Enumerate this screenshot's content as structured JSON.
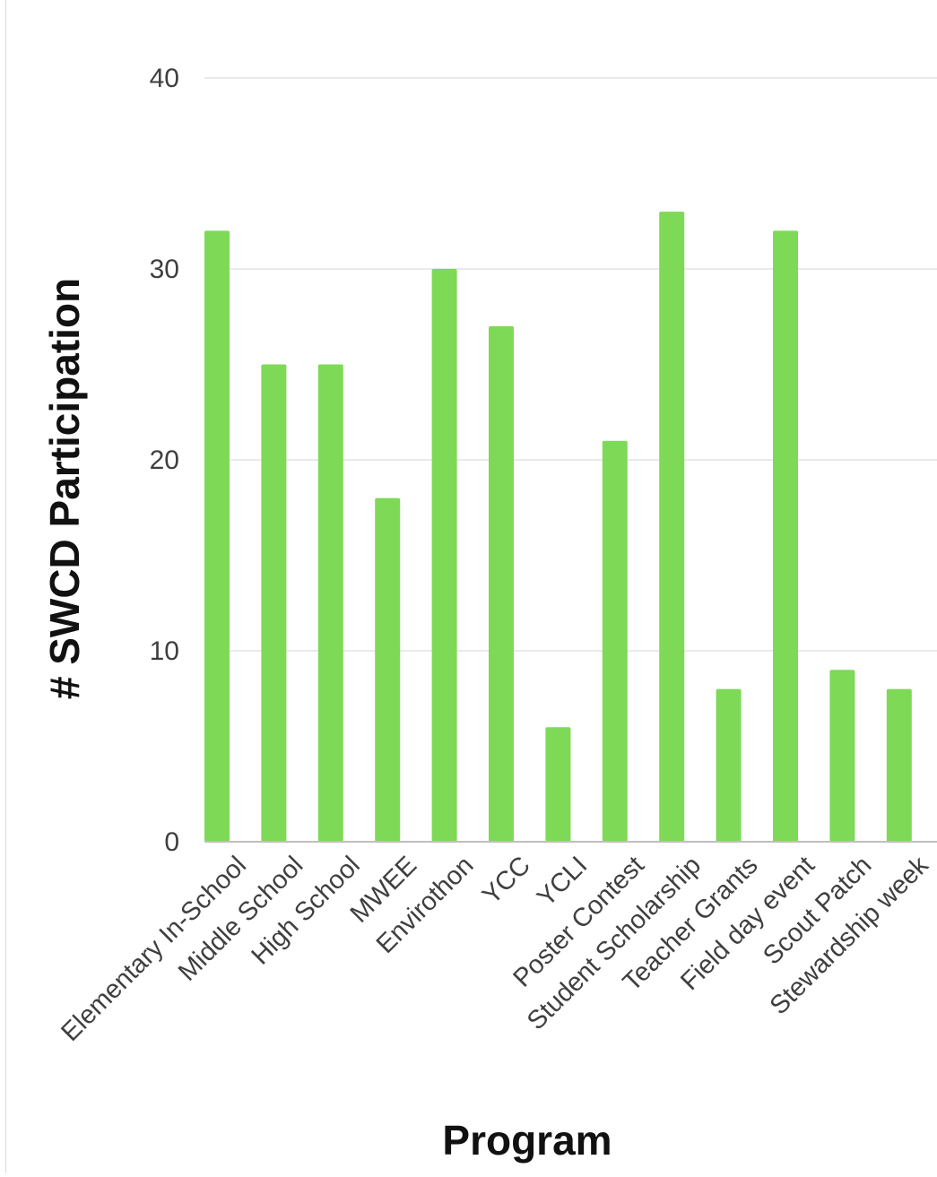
{
  "chart_data": {
    "type": "bar",
    "title": "",
    "xlabel": "Program",
    "ylabel": "# SWCD Participation",
    "categories": [
      "Elementary In-School",
      "Middle School",
      "High School",
      "MWEE",
      "Envirothon",
      "YCC",
      "YCLI",
      "Poster Contest",
      "Student Scholarship",
      "Teacher Grants",
      "Field day event",
      "Scout Patch",
      "Stewardship week"
    ],
    "values": [
      32,
      25,
      25,
      18,
      30,
      27,
      6,
      21,
      33,
      8,
      32,
      9,
      8
    ],
    "ylim": [
      0,
      40
    ],
    "yticks": [
      0,
      10,
      20,
      30,
      40
    ],
    "grid": true,
    "legend": "none",
    "colors": {
      "bar": "#7ed957",
      "grid": "#e3e3e3",
      "axis": "#bfbfbf"
    }
  }
}
